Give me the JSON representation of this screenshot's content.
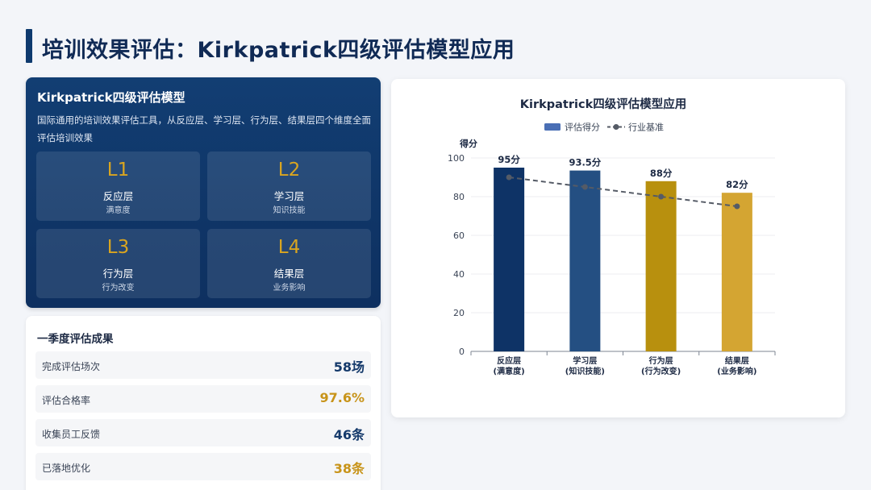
{
  "header": {
    "title": "培训效果评估：Kirkpatrick四级评估模型应用"
  },
  "model": {
    "title": "Kirkpatrick四级评估模型",
    "description": "国际通用的培训效果评估工具，从反应层、学习层、行为层、结果层四个维度全面评估培训效果",
    "levels": [
      {
        "code": "L1",
        "name": "反应层",
        "sub": "满意度"
      },
      {
        "code": "L2",
        "name": "学习层",
        "sub": "知识技能"
      },
      {
        "code": "L3",
        "name": "行为层",
        "sub": "行为改变"
      },
      {
        "code": "L4",
        "name": "结果层",
        "sub": "业务影响"
      }
    ]
  },
  "results": {
    "title": "一季度评估成果",
    "rows": [
      {
        "label": "完成评估场次",
        "value": "58场",
        "color": "#153a6b"
      },
      {
        "label": "评估合格率",
        "value": "97.6%",
        "color": "#c8941a"
      },
      {
        "label": "收集员工反馈",
        "value": "46条",
        "color": "#153a6b"
      },
      {
        "label": "已落地优化",
        "value": "38条",
        "color": "#c8941a"
      }
    ]
  },
  "chart_data": {
    "type": "bar",
    "title": "Kirkpatrick四级评估模型应用",
    "ylabel": "得分",
    "ylim": [
      0,
      100
    ],
    "yticks": [
      0,
      20,
      40,
      60,
      80,
      100
    ],
    "categories": [
      [
        "反应层",
        "(满意度)"
      ],
      [
        "学习层",
        "(知识技能)"
      ],
      [
        "行为层",
        "(行为改变)"
      ],
      [
        "结果层",
        "(业务影响)"
      ]
    ],
    "series": [
      {
        "name": "评估得分",
        "type": "bar",
        "values": [
          95,
          93.5,
          88,
          82
        ],
        "labels": [
          "95分",
          "93.5分",
          "88分",
          "82分"
        ],
        "colors": [
          "#0e3366",
          "#244f82",
          "#b8900e",
          "#d4a532"
        ]
      },
      {
        "name": "行业基准",
        "type": "line",
        "values": [
          90,
          85,
          80,
          75
        ],
        "color": "#555b66"
      }
    ],
    "legend": [
      "评估得分",
      "行业基准"
    ],
    "legend_colors": {
      "bar": "#4a6fb5",
      "line": "#555b66"
    }
  }
}
